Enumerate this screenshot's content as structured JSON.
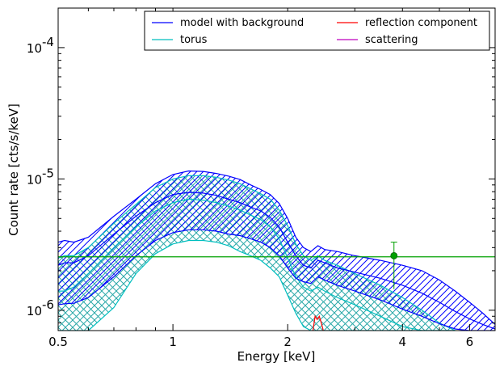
{
  "chart_data": {
    "type": "line",
    "title": "",
    "xlabel": "Energy [keV]",
    "ylabel": "Count rate [cts/s/keV]",
    "xscale": "log",
    "yscale": "log",
    "xlim": [
      0.5,
      7.0
    ],
    "ylim": [
      7e-07,
      0.0002
    ],
    "xticks": [
      {
        "value": 0.5,
        "label": "0.5"
      },
      {
        "value": 1,
        "label": "1"
      },
      {
        "value": 2,
        "label": "2"
      },
      {
        "value": 4,
        "label": "4"
      },
      {
        "value": 6,
        "label": "6"
      }
    ],
    "yticks": [
      {
        "value": 1e-06,
        "base": "10",
        "exp": "-6"
      },
      {
        "value": 1e-05,
        "base": "10",
        "exp": "-5"
      },
      {
        "value": 0.0001,
        "base": "10",
        "exp": "-4"
      }
    ],
    "legend": {
      "placement": "top-right",
      "entries": [
        {
          "label": "model with background",
          "color": "#0000ff"
        },
        {
          "label": "reflection component",
          "color": "#ff0000"
        },
        {
          "label": "torus",
          "color": "#00bfbf"
        },
        {
          "label": "scattering",
          "color": "#bf00bf"
        }
      ]
    },
    "series": [
      {
        "name": "model with background",
        "color": "#0000ff",
        "band_style": "hatch-diagonal",
        "x": [
          0.5,
          0.52,
          0.55,
          0.6,
          0.7,
          0.8,
          0.9,
          1.0,
          1.1,
          1.2,
          1.3,
          1.4,
          1.5,
          1.6,
          1.7,
          1.8,
          1.9,
          2.0,
          2.1,
          2.2,
          2.3,
          2.4,
          2.5,
          2.7,
          3.0,
          3.5,
          4.0,
          4.5,
          5.0,
          5.5,
          6.0,
          6.5,
          7.0
        ],
        "upper": [
          3.3e-06,
          3.4e-06,
          3.3e-06,
          3.6e-06,
          5.2e-06,
          7e-06,
          9.2e-06,
          1.08e-05,
          1.15e-05,
          1.14e-05,
          1.1e-05,
          1.05e-05,
          9.9e-06,
          9e-06,
          8.3e-06,
          7.6e-06,
          6.5e-06,
          5e-06,
          3.6e-06,
          3e-06,
          2.8e-06,
          3.1e-06,
          2.9e-06,
          2.8e-06,
          2.6e-06,
          2.4e-06,
          2.2e-06,
          2e-06,
          1.7e-06,
          1.4e-06,
          1.15e-06,
          9.5e-07,
          7.8e-07
        ],
        "mid": [
          2.2e-06,
          2.3e-06,
          2.3e-06,
          2.6e-06,
          3.8e-06,
          5.2e-06,
          6.6e-06,
          7.6e-06,
          7.9e-06,
          7.8e-06,
          7.5e-06,
          7e-06,
          6.6e-06,
          6.1e-06,
          5.7e-06,
          5.1e-06,
          4.3e-06,
          3.3e-06,
          2.6e-06,
          2.2e-06,
          2.1e-06,
          2.4e-06,
          2.3e-06,
          2.1e-06,
          1.95e-06,
          1.75e-06,
          1.55e-06,
          1.35e-06,
          1.15e-06,
          9.8e-07,
          8.6e-07,
          7.8e-07,
          7.2e-07
        ],
        "lower": [
          1.1e-06,
          1.12e-06,
          1.13e-06,
          1.25e-06,
          1.8e-06,
          2.6e-06,
          3.4e-06,
          3.9e-06,
          4.1e-06,
          4.1e-06,
          4e-06,
          3.8e-06,
          3.7e-06,
          3.5e-06,
          3.3e-06,
          3e-06,
          2.6e-06,
          2.1e-06,
          1.75e-06,
          1.65e-06,
          1.6e-06,
          1.8e-06,
          1.7e-06,
          1.55e-06,
          1.4e-06,
          1.2e-06,
          1.02e-06,
          9e-07,
          7.9e-07,
          7.2e-07,
          7e-07,
          7e-07,
          7e-07
        ]
      },
      {
        "name": "torus",
        "color": "#00bfbf",
        "band_style": "hatch-cross",
        "x": [
          0.5,
          0.52,
          0.55,
          0.6,
          0.7,
          0.8,
          0.9,
          1.0,
          1.1,
          1.2,
          1.3,
          1.4,
          1.5,
          1.6,
          1.7,
          1.8,
          1.9,
          2.0,
          2.1,
          2.2,
          2.3,
          2.4,
          2.5,
          2.7,
          3.0,
          3.5,
          4.0,
          4.5,
          5.0,
          5.5
        ],
        "upper": [
          2.5e-06,
          2.6e-06,
          2.6e-06,
          3e-06,
          4.6e-06,
          6.4e-06,
          8.6e-06,
          1e-05,
          1.06e-05,
          1.06e-05,
          1.03e-05,
          9.8e-06,
          9.2e-06,
          8.4e-06,
          7.7e-06,
          7e-06,
          5.8e-06,
          4.4e-06,
          3.2e-06,
          2.6e-06,
          2.4e-06,
          2.6e-06,
          2.4e-06,
          2.2e-06,
          1.9e-06,
          1.55e-06,
          1.25e-06,
          1e-06,
          8e-07,
          7e-07
        ],
        "mid": [
          1.4e-06,
          1.4e-06,
          1.5e-06,
          1.9e-06,
          3e-06,
          4.3e-06,
          5.7e-06,
          6.6e-06,
          7e-06,
          6.9e-06,
          6.6e-06,
          6.2e-06,
          5.8e-06,
          5.3e-06,
          4.9e-06,
          4.3e-06,
          3.5e-06,
          2.5e-06,
          1.8e-06,
          1.5e-06,
          1.4e-06,
          1.5e-06,
          1.4e-06,
          1.25e-06,
          1.1e-06,
          9e-07,
          7.5e-07,
          7e-07,
          7e-07,
          7e-07
        ],
        "lower": [
          7e-07,
          7e-07,
          7e-07,
          7e-07,
          1.05e-06,
          1.9e-06,
          2.7e-06,
          3.2e-06,
          3.4e-06,
          3.4e-06,
          3.3e-06,
          3.1e-06,
          2.8e-06,
          2.6e-06,
          2.4e-06,
          2.1e-06,
          1.8e-06,
          1.3e-06,
          9.5e-07,
          7.5e-07,
          7e-07,
          7e-07,
          7e-07,
          7e-07,
          7e-07,
          7e-07,
          7e-07,
          7e-07,
          7e-07,
          7e-07
        ]
      },
      {
        "name": "reflection component",
        "color": "#ff0000",
        "x": [
          2.33,
          2.36,
          2.39,
          2.42,
          2.45,
          2.48
        ],
        "y": [
          7e-07,
          9e-07,
          8.5e-07,
          9e-07,
          8e-07,
          7e-07
        ]
      },
      {
        "name": "scattering",
        "color": "#bf00bf",
        "x": [],
        "y": []
      }
    ],
    "background_level": {
      "y": 2.55e-06,
      "color": "#00a000"
    },
    "data_points": [
      {
        "x": 3.8,
        "y": 2.6e-06,
        "yerr_low": 1.45e-06,
        "yerr_high": 3.3e-06,
        "color": "#00a000"
      }
    ],
    "grid": false
  }
}
